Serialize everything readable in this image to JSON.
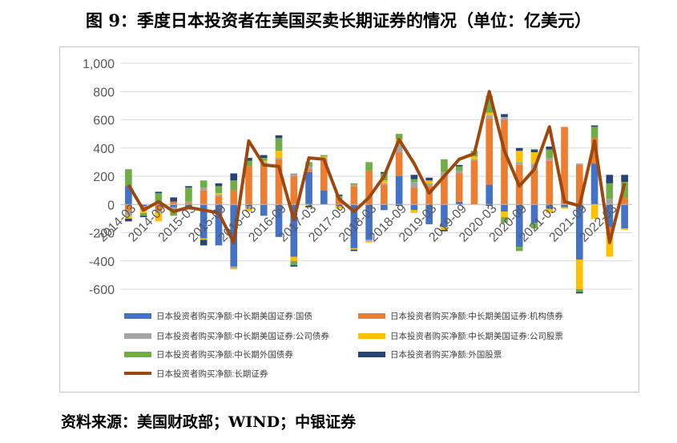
{
  "title": "图 9：季度日本投资者在美国买卖长期证券的情况（单位：亿美元）",
  "source": "资料来源：美国财政部；WIND；中银证券",
  "chart_data": {
    "type": "bar",
    "stacked": true,
    "title": "图 9：季度日本投资者在美国买卖长期证券的情况（单位：亿美元）",
    "xlabel": "",
    "ylabel": "",
    "ylim": [
      -600,
      1000
    ],
    "yticks": [
      1000,
      800,
      600,
      400,
      200,
      0,
      -200,
      -400,
      -600
    ],
    "ytick_labels": [
      "1,000",
      "800",
      "600",
      "400",
      "200",
      "0",
      "-200",
      "-400",
      "-600"
    ],
    "grid": true,
    "legend_position": "bottom",
    "categories": [
      "2014-03",
      "2014-06",
      "2014-09",
      "2014-12",
      "2015-03",
      "2015-06",
      "2015-09",
      "2015-12",
      "2016-03",
      "2016-06",
      "2016-09",
      "2016-12",
      "2017-03",
      "2017-06",
      "2017-09",
      "2017-12",
      "2018-03",
      "2018-06",
      "2018-09",
      "2018-12",
      "2019-03",
      "2019-06",
      "2019-09",
      "2019-12",
      "2020-03",
      "2020-06",
      "2020-09",
      "2020-12",
      "2021-03",
      "2021-06",
      "2021-09",
      "2021-12",
      "2022-03",
      "2022-06"
    ],
    "tick_labels": [
      "2014-03",
      "2014-09",
      "2015-03",
      "2015-09",
      "2016-03",
      "2016-09",
      "2017-03",
      "2017-09",
      "2018-03",
      "2018-09",
      "2019-03",
      "2019-09",
      "2020-03",
      "2020-09",
      "2021-03",
      "2021-09",
      "2022-03"
    ],
    "series": [
      {
        "name": "日本投资者购买净额:中长期美国证券:国债",
        "color": "#4472c4",
        "kind": "bar",
        "values": [
          130,
          -10,
          10,
          -20,
          -20,
          -240,
          -290,
          -440,
          -10,
          -80,
          -230,
          -370,
          230,
          100,
          -10,
          -310,
          -250,
          -40,
          200,
          -40,
          -140,
          -160,
          20,
          0,
          140,
          -50,
          -300,
          -130,
          -30,
          -20,
          -390,
          290,
          -160,
          -170
        ]
      },
      {
        "name": "日本投资者购买净额:中长期美国证券:机构债券",
        "color": "#ed7d31",
        "kind": "bar",
        "values": [
          -50,
          -20,
          -50,
          20,
          10,
          100,
          60,
          100,
          270,
          290,
          320,
          200,
          20,
          210,
          50,
          130,
          240,
          140,
          170,
          120,
          130,
          200,
          200,
          310,
          470,
          600,
          280,
          250,
          310,
          550,
          280,
          180,
          -60,
          50
        ]
      },
      {
        "name": "日本投资者购买净额:中长期美国证券:公司债券",
        "color": "#a5a5a5",
        "kind": "bar",
        "values": [
          -30,
          -10,
          -10,
          -10,
          10,
          20,
          10,
          -10,
          -20,
          10,
          10,
          20,
          20,
          20,
          0,
          10,
          -10,
          10,
          60,
          40,
          20,
          30,
          20,
          10,
          20,
          20,
          20,
          40,
          20,
          0,
          10,
          0,
          40,
          0
        ]
      },
      {
        "name": "日本投资者购买净额:中长期美国证券:公司股票",
        "color": "#ffc000",
        "kind": "bar",
        "values": [
          -20,
          -20,
          -60,
          0,
          -20,
          -10,
          10,
          -10,
          -20,
          10,
          50,
          -30,
          -10,
          10,
          -20,
          -10,
          -10,
          20,
          30,
          -20,
          20,
          -20,
          0,
          20,
          20,
          -40,
          80,
          80,
          -30,
          -10,
          -210,
          -100,
          -150,
          -10
        ]
      },
      {
        "name": "日本投资者购买净额:中长期外国债券",
        "color": "#70ad47",
        "kind": "bar",
        "values": [
          120,
          -20,
          70,
          -50,
          100,
          50,
          50,
          70,
          40,
          20,
          90,
          -30,
          30,
          10,
          10,
          10,
          60,
          50,
          40,
          20,
          0,
          90,
          30,
          40,
          120,
          -40,
          -30,
          -40,
          60,
          0,
          -20,
          80,
          110,
          110
        ]
      },
      {
        "name": "日本投资者购买净额:外国股票",
        "color": "#264478",
        "kind": "bar",
        "values": [
          -20,
          -10,
          10,
          30,
          10,
          -40,
          20,
          50,
          20,
          20,
          20,
          -10,
          -10,
          0,
          10,
          -10,
          0,
          10,
          -10,
          30,
          20,
          -10,
          10,
          0,
          -10,
          20,
          20,
          20,
          20,
          0,
          -10,
          10,
          60,
          50
        ]
      },
      {
        "name": "日本投资者购买净额:长期证券",
        "color": "#9e480e",
        "kind": "line",
        "values": [
          140,
          -40,
          20,
          -50,
          -20,
          -40,
          -60,
          -270,
          450,
          280,
          270,
          -110,
          330,
          320,
          40,
          -50,
          50,
          200,
          460,
          290,
          80,
          200,
          320,
          360,
          800,
          380,
          130,
          250,
          550,
          20,
          -10,
          450,
          -270,
          150
        ]
      }
    ]
  }
}
